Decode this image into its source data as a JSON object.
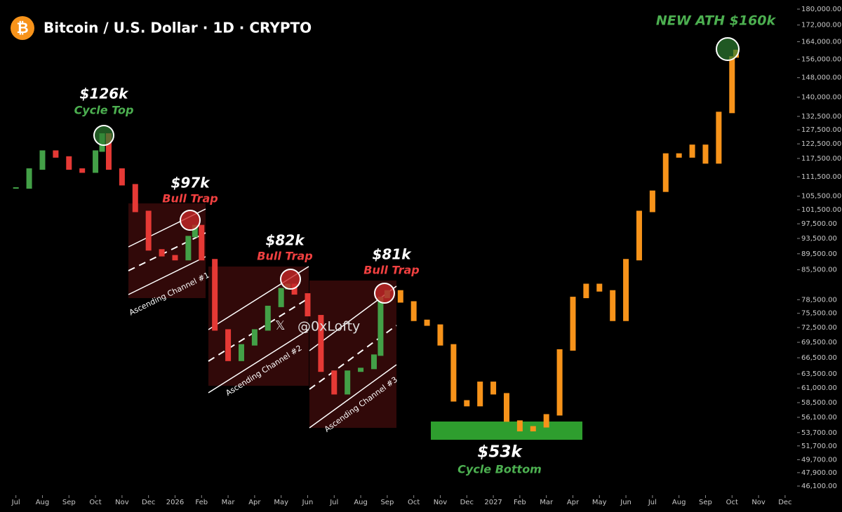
{
  "chart_data": {
    "type": "candlestick",
    "title": "Bitcoin / U.S. Dollar · 1D · CRYPTO",
    "watermark": "@0xLofty",
    "log_scale": true,
    "ylim": [
      46100,
      180000
    ],
    "xlim": [
      -0.6,
      29.4
    ],
    "yticks": [
      {
        "value": 180000,
        "label": "180,000.00"
      },
      {
        "value": 172000,
        "label": "172,000.00"
      },
      {
        "value": 164000,
        "label": "164,000.00"
      },
      {
        "value": 156000,
        "label": "156,000.00"
      },
      {
        "value": 148000,
        "label": "148,000.00"
      },
      {
        "value": 140000,
        "label": "140,000.00"
      },
      {
        "value": 132500,
        "label": "132,500.00"
      },
      {
        "value": 127500,
        "label": "127,500.00"
      },
      {
        "value": 122500,
        "label": "122,500.00"
      },
      {
        "value": 117500,
        "label": "117,500.00"
      },
      {
        "value": 111500,
        "label": "111,500.00"
      },
      {
        "value": 105500,
        "label": "105,500.00"
      },
      {
        "value": 101500,
        "label": "101,500.00"
      },
      {
        "value": 97500,
        "label": "97,500.00"
      },
      {
        "value": 93500,
        "label": "93,500.00"
      },
      {
        "value": 89500,
        "label": "89,500.00"
      },
      {
        "value": 85500,
        "label": "85,500.00"
      },
      {
        "value": 78500,
        "label": "78,500.00"
      },
      {
        "value": 75500,
        "label": "75,500.00"
      },
      {
        "value": 72500,
        "label": "72,500.00"
      },
      {
        "value": 69500,
        "label": "69,500.00"
      },
      {
        "value": 66500,
        "label": "66,500.00"
      },
      {
        "value": 63500,
        "label": "63,500.00"
      },
      {
        "value": 61000,
        "label": "61,000.00"
      },
      {
        "value": 58500,
        "label": "58,500.00"
      },
      {
        "value": 56100,
        "label": "56,100.00"
      },
      {
        "value": 53700,
        "label": "53,700.00"
      },
      {
        "value": 51700,
        "label": "51,700.00"
      },
      {
        "value": 49700,
        "label": "49,700.00"
      },
      {
        "value": 47900,
        "label": "47,900.00"
      },
      {
        "value": 46100,
        "label": "46,100.00"
      }
    ],
    "xticks": [
      {
        "value": 0,
        "label": "Jul"
      },
      {
        "value": 1,
        "label": "Aug"
      },
      {
        "value": 2,
        "label": "Sep"
      },
      {
        "value": 3,
        "label": "Oct"
      },
      {
        "value": 4,
        "label": "Nov"
      },
      {
        "value": 5,
        "label": "Dec"
      },
      {
        "value": 6,
        "label": "2026"
      },
      {
        "value": 7,
        "label": "Feb"
      },
      {
        "value": 8,
        "label": "Mar"
      },
      {
        "value": 9,
        "label": "Apr"
      },
      {
        "value": 10,
        "label": "May"
      },
      {
        "value": 11,
        "label": "Jun"
      },
      {
        "value": 12,
        "label": "Jul"
      },
      {
        "value": 13,
        "label": "Aug"
      },
      {
        "value": 14,
        "label": "Sep"
      },
      {
        "value": 15,
        "label": "Oct"
      },
      {
        "value": 16,
        "label": "Nov"
      },
      {
        "value": 17,
        "label": "Dec"
      },
      {
        "value": 18,
        "label": "2027"
      },
      {
        "value": 19,
        "label": "Feb"
      },
      {
        "value": 20,
        "label": "Mar"
      },
      {
        "value": 21,
        "label": "Apr"
      },
      {
        "value": 22,
        "label": "May"
      },
      {
        "value": 23,
        "label": "Jun"
      },
      {
        "value": 24,
        "label": "Jul"
      },
      {
        "value": 25,
        "label": "Aug"
      },
      {
        "value": 26,
        "label": "Sep"
      },
      {
        "value": 27,
        "label": "Oct"
      },
      {
        "value": 28,
        "label": "Nov"
      },
      {
        "value": 29,
        "label": "Dec"
      }
    ],
    "series": [
      {
        "up_color": "#43a047",
        "down_color": "#e53935",
        "x": [
          0,
          0.5,
          1,
          1.5,
          2,
          2.5,
          3,
          3.25,
          3.5,
          4,
          4.5,
          5,
          5.5,
          6,
          6.5,
          6.75,
          7,
          7.5,
          8,
          8.5,
          9,
          9.5,
          10,
          10.25,
          10.5,
          11,
          11.5,
          12,
          12.5,
          13,
          13.5,
          13.75,
          14
        ],
        "values": [
          108000,
          114000,
          120000,
          118000,
          114000,
          113000,
          120000,
          126000,
          114000,
          109000,
          101000,
          90500,
          89000,
          88000,
          94000,
          97000,
          88000,
          72000,
          66000,
          69000,
          72000,
          77000,
          81000,
          82000,
          79800,
          75000,
          64000,
          60000,
          64000,
          64500,
          67000,
          79000,
          80500
        ]
      },
      {
        "color": "#f7931a",
        "x": [
          14.5,
          15,
          15.5,
          16,
          16.5,
          17,
          17.5,
          18,
          18.5,
          19,
          19.5,
          20,
          20.5,
          21,
          21.5,
          22,
          22.5,
          23,
          23.5,
          24,
          24.5,
          25,
          25.5,
          26,
          26.5,
          27,
          27.15
        ],
        "values": [
          78000,
          74000,
          73000,
          69000,
          58800,
          58000,
          62000,
          60000,
          55500,
          54000,
          54600,
          56500,
          68000,
          79000,
          82000,
          80500,
          74000,
          88000,
          101000,
          107000,
          119000,
          118000,
          122000,
          116000,
          134000,
          157000,
          160000
        ]
      }
    ],
    "annotations": [
      {
        "price": "$126k",
        "label": "Cycle Top"
      },
      {
        "price": "$97k",
        "label": "Bull Trap"
      },
      {
        "price": "$82k",
        "label": "Bull Trap"
      },
      {
        "price": "$81k",
        "label": "Bull Trap"
      },
      {
        "price": "$53k",
        "label": "Cycle Bottom"
      },
      {
        "label": "NEW ATH $160k"
      }
    ],
    "channels": [
      "Ascending Channel #1",
      "Ascending Channel #2",
      "Ascending Channel #3"
    ]
  }
}
